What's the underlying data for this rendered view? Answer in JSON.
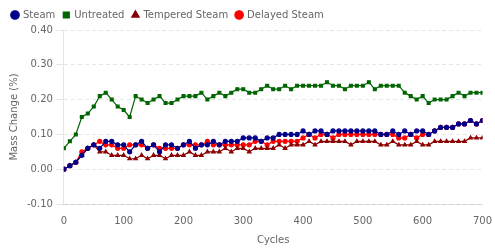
{
  "chart_data": {
    "type": "line",
    "xlabel": "Cycles",
    "ylabel": "Mass Change (%)",
    "x": [
      0,
      10,
      20,
      30,
      40,
      50,
      60,
      70,
      80,
      90,
      100,
      110,
      120,
      130,
      140,
      150,
      160,
      170,
      180,
      190,
      200,
      210,
      220,
      230,
      240,
      250,
      260,
      270,
      280,
      290,
      300,
      310,
      320,
      330,
      340,
      350,
      360,
      370,
      380,
      390,
      400,
      410,
      420,
      430,
      440,
      450,
      460,
      470,
      480,
      490,
      500,
      510,
      520,
      530,
      540,
      550,
      560,
      570,
      580,
      590,
      600,
      610,
      620,
      630,
      640,
      650,
      660,
      670,
      680,
      690,
      700
    ],
    "series": [
      {
        "name": "Steam",
        "color": "#00008B",
        "marker": "circle",
        "values": [
          0.0,
          0.01,
          0.02,
          0.04,
          0.06,
          0.07,
          0.06,
          0.08,
          0.08,
          0.07,
          0.07,
          0.05,
          0.07,
          0.08,
          0.06,
          0.07,
          0.05,
          0.07,
          0.07,
          0.06,
          0.07,
          0.08,
          0.06,
          0.07,
          0.07,
          0.08,
          0.07,
          0.08,
          0.08,
          0.08,
          0.09,
          0.09,
          0.09,
          0.08,
          0.09,
          0.09,
          0.1,
          0.1,
          0.1,
          0.1,
          0.11,
          0.1,
          0.11,
          0.11,
          0.1,
          0.11,
          0.11,
          0.11,
          0.11,
          0.11,
          0.11,
          0.11,
          0.11,
          0.1,
          0.1,
          0.11,
          0.1,
          0.11,
          0.1,
          0.11,
          0.11,
          0.1,
          0.11,
          0.12,
          0.12,
          0.12,
          0.13,
          0.13,
          0.14,
          0.13,
          0.14
        ]
      },
      {
        "name": "Untreated",
        "color": "#006400",
        "marker": "square",
        "values": [
          0.06,
          0.08,
          0.1,
          0.15,
          0.16,
          0.18,
          0.21,
          0.22,
          0.2,
          0.18,
          0.17,
          0.15,
          0.21,
          0.2,
          0.19,
          0.2,
          0.21,
          0.19,
          0.19,
          0.2,
          0.21,
          0.21,
          0.21,
          0.22,
          0.2,
          0.21,
          0.22,
          0.21,
          0.22,
          0.23,
          0.23,
          0.22,
          0.22,
          0.23,
          0.24,
          0.23,
          0.23,
          0.24,
          0.23,
          0.24,
          0.24,
          0.24,
          0.24,
          0.24,
          0.25,
          0.24,
          0.24,
          0.23,
          0.24,
          0.24,
          0.24,
          0.25,
          0.23,
          0.24,
          0.24,
          0.24,
          0.24,
          0.22,
          0.21,
          0.2,
          0.21,
          0.19,
          0.2,
          0.2,
          0.2,
          0.21,
          0.22,
          0.21,
          0.22,
          0.22,
          0.22
        ]
      },
      {
        "name": "Tempered Steam",
        "color": "#8B0000",
        "marker": "triangle",
        "values": [
          0.0,
          0.01,
          0.02,
          0.04,
          0.06,
          0.07,
          0.05,
          0.05,
          0.04,
          0.04,
          0.04,
          0.03,
          0.03,
          0.04,
          0.03,
          0.04,
          0.04,
          0.03,
          0.04,
          0.04,
          0.04,
          0.05,
          0.04,
          0.04,
          0.05,
          0.05,
          0.05,
          0.06,
          0.05,
          0.06,
          0.06,
          0.05,
          0.06,
          0.06,
          0.06,
          0.06,
          0.07,
          0.06,
          0.07,
          0.07,
          0.07,
          0.08,
          0.07,
          0.08,
          0.08,
          0.08,
          0.08,
          0.08,
          0.07,
          0.08,
          0.08,
          0.08,
          0.08,
          0.07,
          0.07,
          0.08,
          0.07,
          0.07,
          0.07,
          0.08,
          0.07,
          0.07,
          0.08,
          0.08,
          0.08,
          0.08,
          0.08,
          0.08,
          0.09,
          0.09,
          0.09
        ]
      },
      {
        "name": "Delayed Steam",
        "color": "#FF0000",
        "marker": "circle",
        "values": [
          0.0,
          0.01,
          0.02,
          0.05,
          0.06,
          0.07,
          0.08,
          0.07,
          0.07,
          0.06,
          0.06,
          0.07,
          0.07,
          0.07,
          0.06,
          0.07,
          0.06,
          0.06,
          0.06,
          0.06,
          0.07,
          0.07,
          0.07,
          0.07,
          0.08,
          0.07,
          0.07,
          0.07,
          0.07,
          0.07,
          0.07,
          0.07,
          0.08,
          0.08,
          0.07,
          0.08,
          0.08,
          0.08,
          0.08,
          0.08,
          0.09,
          0.1,
          0.09,
          0.1,
          0.1,
          0.09,
          0.1,
          0.1,
          0.1,
          0.1,
          0.1,
          0.1,
          0.1,
          0.1,
          0.1,
          0.1,
          0.09,
          0.09,
          0.1,
          0.09,
          0.1,
          0.1,
          0.11,
          0.12,
          0.12,
          0.12,
          0.13,
          0.13,
          0.14,
          0.13,
          0.14
        ]
      }
    ],
    "xlim": [
      0,
      700
    ],
    "xticks": [
      0,
      100,
      200,
      300,
      400,
      500,
      600,
      700
    ],
    "ylim": [
      -0.1,
      0.4
    ],
    "yticks": [
      {
        "value": -0.1,
        "label": "-0.10"
      },
      {
        "value": 0.0,
        "label": "0.00"
      },
      {
        "value": 0.1,
        "label": "0.10"
      },
      {
        "value": 0.2,
        "label": "0.20"
      },
      {
        "value": 0.3,
        "label": "0.30"
      },
      {
        "value": 0.4,
        "label": "0.40"
      }
    ],
    "grid": "y",
    "legend": "upper left"
  }
}
